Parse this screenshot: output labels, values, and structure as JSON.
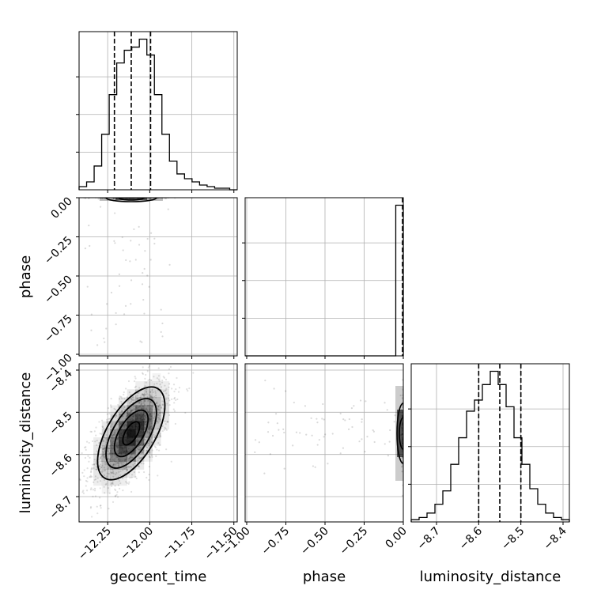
{
  "chart_data": {
    "type": "corner",
    "parameters": [
      "geocent_time",
      "phase",
      "luminosity_distance"
    ],
    "axis_labels": {
      "geocent_time": "geocent_time",
      "phase": "phase",
      "luminosity_distance": "luminosity_distance"
    },
    "ranges": {
      "geocent_time": [
        -12.42,
        -11.48
      ],
      "phase": [
        -1.01,
        0.0
      ],
      "luminosity_distance": [
        -8.76,
        -8.385
      ]
    },
    "ticks": {
      "geocent_time": [
        {
          "v": -12.25,
          "label": "−12.25"
        },
        {
          "v": -12.0,
          "label": "−12.00"
        },
        {
          "v": -11.75,
          "label": "−11.75"
        },
        {
          "v": -11.5,
          "label": "−11.50"
        }
      ],
      "phase": [
        {
          "v": -1.0,
          "label": "−1.00"
        },
        {
          "v": -0.75,
          "label": "−0.75"
        },
        {
          "v": -0.5,
          "label": "−0.50"
        },
        {
          "v": -0.25,
          "label": "−0.25"
        },
        {
          "v": 0.0,
          "label": "0.00"
        }
      ],
      "luminosity_distance": [
        {
          "v": -8.7,
          "label": "−8.7"
        },
        {
          "v": -8.6,
          "label": "−8.6"
        },
        {
          "v": -8.5,
          "label": "−8.5"
        },
        {
          "v": -8.4,
          "label": "−8.4"
        }
      ]
    },
    "quantiles": {
      "geocent_time": [
        -12.21,
        -12.11,
        -11.995
      ],
      "phase": [
        0.0
      ],
      "luminosity_distance": [
        -8.6,
        -8.55,
        -8.5
      ]
    },
    "histograms": {
      "geocent_time": {
        "range": [
          -12.42,
          -11.48
        ],
        "counts": [
          2,
          5,
          15,
          35,
          60,
          80,
          88,
          90,
          95,
          85,
          60,
          35,
          18,
          10,
          7,
          5,
          3,
          2,
          1,
          1,
          0
        ]
      },
      "phase": {
        "range": [
          -1.01,
          0.0
        ],
        "counts": [
          0,
          0,
          0,
          0,
          0,
          0,
          0,
          0,
          0,
          0,
          0,
          0,
          0,
          0,
          0,
          0,
          0,
          0,
          0,
          0,
          95
        ]
      },
      "luminosity_distance": {
        "range": [
          -8.76,
          -8.385
        ],
        "counts": [
          1,
          2,
          4,
          8,
          14,
          26,
          38,
          50,
          55,
          62,
          68,
          62,
          52,
          38,
          26,
          15,
          8,
          4,
          2,
          1
        ]
      }
    },
    "density": {
      "geocent_time_vs_luminosity_distance": {
        "mean": [
          -12.11,
          -8.55
        ],
        "sd": [
          0.1,
          0.055
        ],
        "corr": 0.6,
        "contour_levels_sigma": [
          0.5,
          1.0,
          1.5,
          2.0
        ]
      }
    },
    "ylim": [
      0,
      100
    ],
    "grid": true
  }
}
